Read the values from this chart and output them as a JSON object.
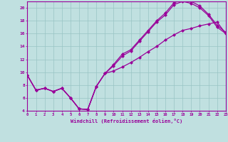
{
  "background_color": "#c0e0e0",
  "grid_color": "#99c4c4",
  "line_color": "#990099",
  "xlabel": "Windchill (Refroidissement éolien,°C)",
  "xlim_min": 0,
  "xlim_max": 23,
  "ylim_min": 4,
  "ylim_max": 21,
  "yticks": [
    4,
    6,
    8,
    10,
    12,
    14,
    16,
    18,
    20
  ],
  "xticks": [
    0,
    1,
    2,
    3,
    4,
    5,
    6,
    7,
    8,
    9,
    10,
    11,
    12,
    13,
    14,
    15,
    16,
    17,
    18,
    19,
    20,
    21,
    22,
    23
  ],
  "line1_x": [
    0,
    1,
    2,
    3,
    4,
    5,
    6,
    7,
    8,
    9,
    10,
    11,
    12,
    13,
    14,
    15,
    16,
    17,
    18,
    19,
    20,
    21,
    22,
    23
  ],
  "line1_y": [
    9.5,
    7.2,
    7.5,
    7.0,
    7.5,
    6.0,
    4.3,
    4.2,
    7.8,
    9.8,
    11.2,
    12.8,
    13.5,
    15.0,
    16.5,
    18.0,
    19.2,
    20.8,
    21.2,
    21.0,
    20.3,
    19.0,
    17.3,
    16.2
  ],
  "line2_x": [
    0,
    1,
    2,
    3,
    4,
    5,
    6,
    7,
    8,
    9,
    10,
    11,
    12,
    13,
    14,
    15,
    16,
    17,
    18,
    19,
    20,
    21,
    22,
    23
  ],
  "line2_y": [
    9.5,
    7.2,
    7.5,
    7.0,
    7.5,
    6.0,
    4.3,
    4.2,
    7.8,
    9.8,
    11.0,
    12.5,
    13.3,
    14.8,
    16.3,
    17.8,
    18.9,
    20.5,
    21.0,
    20.7,
    20.0,
    18.8,
    17.0,
    16.0
  ],
  "line3_x": [
    0,
    1,
    2,
    3,
    4,
    5,
    6,
    7,
    8,
    9,
    10,
    11,
    12,
    13,
    14,
    15,
    16,
    17,
    18,
    19,
    20,
    21,
    22,
    23
  ],
  "line3_y": [
    9.5,
    7.2,
    7.5,
    7.0,
    7.5,
    6.0,
    4.3,
    4.2,
    7.8,
    9.8,
    10.2,
    10.8,
    11.5,
    12.3,
    13.2,
    14.0,
    15.0,
    15.8,
    16.5,
    16.8,
    17.2,
    17.5,
    17.8,
    16.0
  ]
}
